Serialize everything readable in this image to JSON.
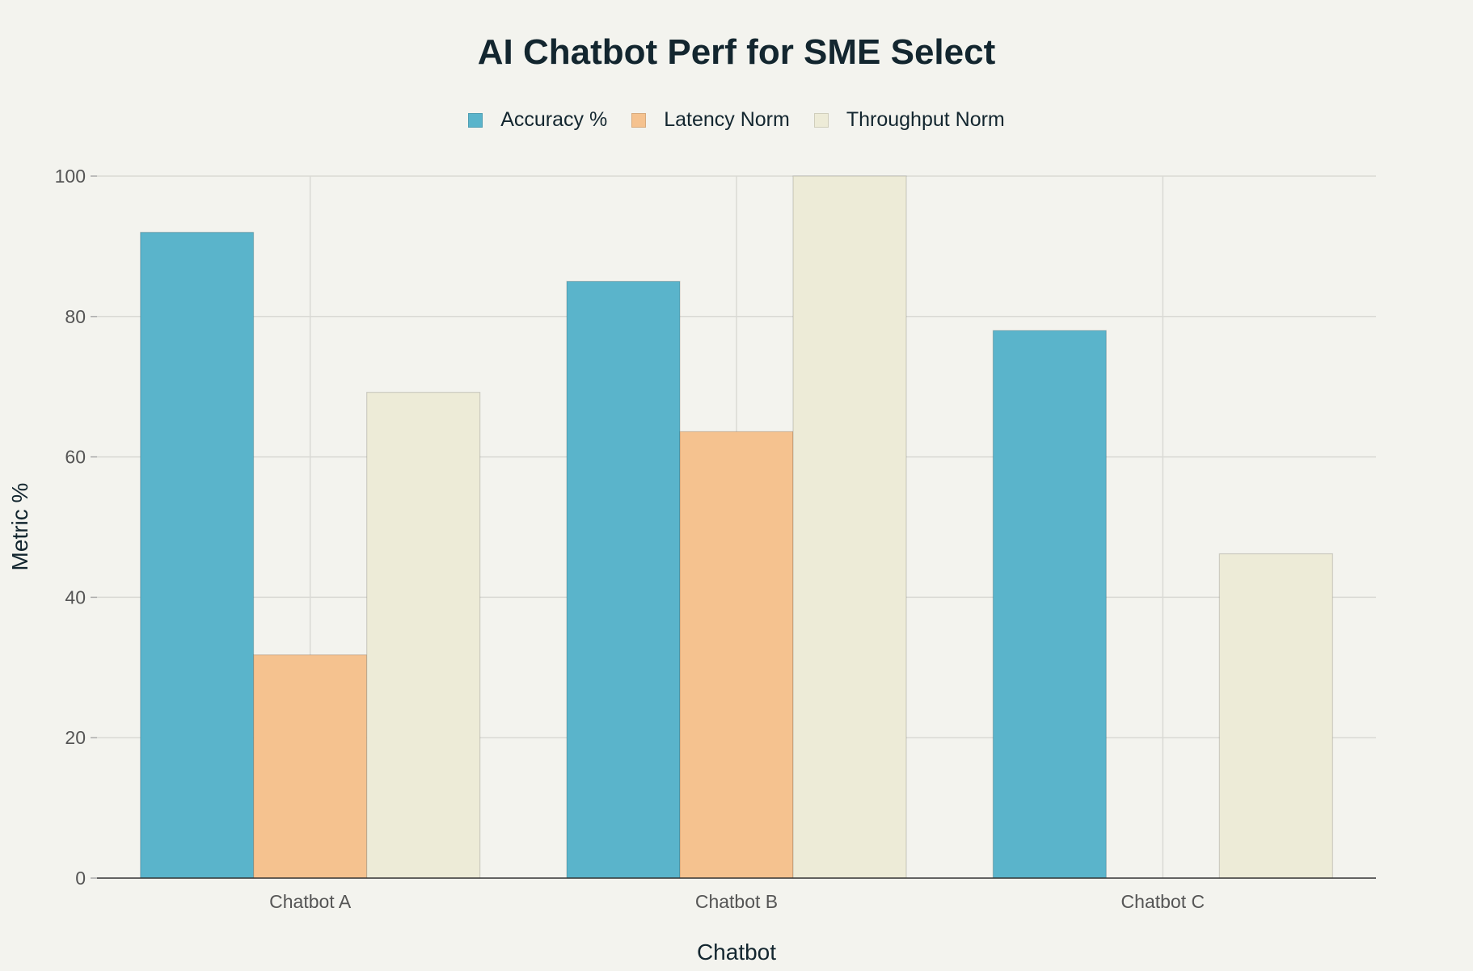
{
  "colors": {
    "background": "#f3f3ee",
    "grid": "#d9d9d4",
    "axis": "#333333"
  },
  "chart_data": {
    "type": "bar",
    "title": "AI Chatbot Perf for SME Select",
    "xlabel": "Chatbot",
    "ylabel": "Metric %",
    "categories": [
      "Chatbot A",
      "Chatbot B",
      "Chatbot C"
    ],
    "ylim": [
      0,
      100
    ],
    "yticks": [
      0,
      20,
      40,
      60,
      80,
      100
    ],
    "grid": true,
    "legend_position": "top-center",
    "series": [
      {
        "name": "Accuracy %",
        "values": [
          92,
          85,
          78
        ],
        "color": "#5ab4cb"
      },
      {
        "name": "Latency Norm",
        "values": [
          31.8,
          63.6,
          0
        ],
        "color": "#f5c28f"
      },
      {
        "name": "Throughput Norm",
        "values": [
          69.2,
          100,
          46.2
        ],
        "color": "#edebd7"
      }
    ]
  }
}
